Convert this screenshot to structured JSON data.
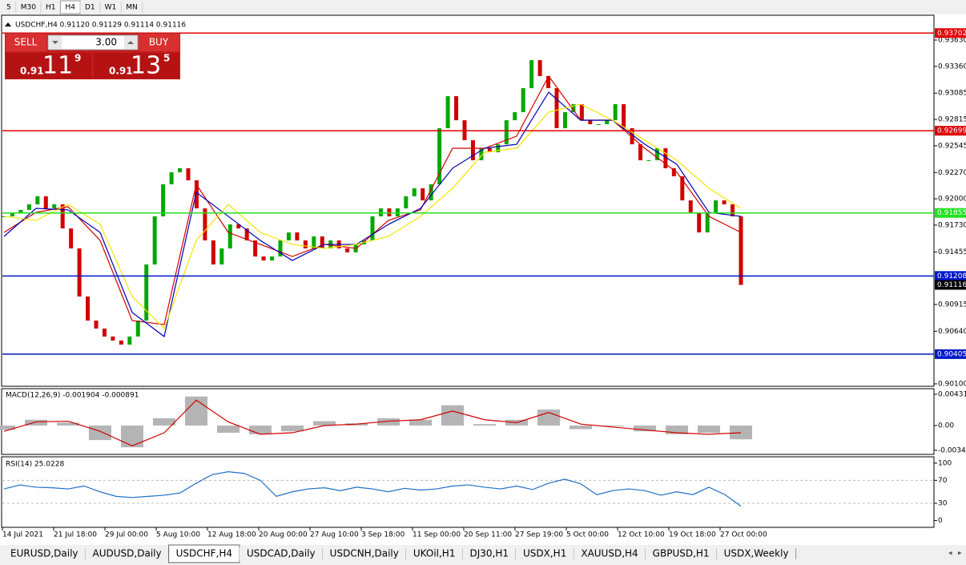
{
  "toolbar": {
    "timeframes": [
      "5",
      "M30",
      "H1",
      "H4",
      "D1",
      "W1",
      "MN"
    ],
    "active": 3
  },
  "trade_panel": {
    "sell": "SELL",
    "buy": "BUY",
    "lots": "3.00",
    "bid": {
      "big": "0.91",
      "pips": "11",
      "point": "9"
    },
    "ask": {
      "big": "0.91",
      "pips": "13",
      "point": "5"
    }
  },
  "chart_data": [
    {
      "type": "candlestick",
      "title": "USDCHF,H4 0.91120 0.91129 0.91114 0.91116",
      "closes": [
        0.9182,
        0.91861,
        0.91886,
        0.91943,
        0.92026,
        0.91902,
        0.91943,
        0.91696,
        0.91491,
        0.90997,
        0.9075,
        0.90668,
        0.90586,
        0.90545,
        0.90503,
        0.90586,
        0.9075,
        0.91326,
        0.9182,
        0.92149,
        0.92272,
        0.92314,
        0.9219,
        0.91902,
        0.91573,
        0.91326,
        0.91491,
        0.91738,
        0.91696,
        0.91573,
        0.91408,
        0.91367,
        0.91408,
        0.91573,
        0.91655,
        0.91573,
        0.91491,
        0.91614,
        0.91491,
        0.91573,
        0.91491,
        0.9145,
        0.91532,
        0.91573,
        0.9182,
        0.91902,
        0.9182,
        0.91902,
        0.92026,
        0.92108,
        0.91984,
        0.92149,
        0.92725,
        0.93054,
        0.92807,
        0.92602,
        0.92396,
        0.92519,
        0.92478,
        0.9256,
        0.92807,
        0.9289,
        0.93136,
        0.93424,
        0.9326,
        0.93136,
        0.92725,
        0.9289,
        0.92972,
        0.92807,
        0.92766,
        0.92766,
        0.92807,
        0.92972,
        0.92725,
        0.9256,
        0.92396,
        0.92396,
        0.92519,
        0.92314,
        0.92231,
        0.91984,
        0.91861,
        0.91655,
        0.91861,
        0.91984,
        0.91943,
        0.9182,
        0.91116
      ],
      "up_color": "#00a800",
      "down_color": "#d00000",
      "lines": [
        {
          "color": "#d40000",
          "values": [
            0.91655,
            0.91861,
            0.91919,
            0.91573,
            0.9075,
            0.90709,
            0.92149,
            0.91655,
            0.91532,
            0.91408,
            0.91532,
            0.91491,
            0.91779,
            0.91886,
            0.92519,
            0.92519,
            0.92643,
            0.9326,
            0.92807,
            0.92807,
            0.92519,
            0.92272,
            0.9182,
            0.91655
          ]
        },
        {
          "color": "#0000b4",
          "values": [
            0.91614,
            0.91902,
            0.91886,
            0.91655,
            0.90833,
            0.90586,
            0.92067,
            0.9182,
            0.91573,
            0.91367,
            0.91532,
            0.91532,
            0.91738,
            0.91902,
            0.92314,
            0.92519,
            0.9256,
            0.93095,
            0.92807,
            0.92807,
            0.9256,
            0.92355,
            0.91861,
            0.9182
          ]
        },
        {
          "color": "#f2e600",
          "values": [
            0.9182,
            0.91779,
            0.91943,
            0.91738,
            0.90997,
            0.90668,
            0.91573,
            0.91943,
            0.91655,
            0.91532,
            0.91491,
            0.91532,
            0.91614,
            0.9182,
            0.92108,
            0.92478,
            0.92519,
            0.9289,
            0.92972,
            0.92807,
            0.92602,
            0.92396,
            0.92108,
            0.91902
          ]
        }
      ],
      "levels": [
        {
          "value": 0.93702,
          "color": "#e00000"
        },
        {
          "value": 0.92699,
          "color": "#e00000"
        },
        {
          "value": 0.91855,
          "color": "#22e022"
        },
        {
          "value": 0.91208,
          "color": "#0018c8"
        },
        {
          "value": 0.90405,
          "color": "#0018c8"
        }
      ],
      "current_price": 0.91116,
      "ylim": [
        0.90075,
        0.93877
      ],
      "yticks": [
        {
          "value": 0.9363,
          "label": "0.93630"
        },
        {
          "value": 0.9336,
          "label": "0.93360"
        },
        0.93085,
        0.92815,
        0.92545,
        {
          "value": 0.9227,
          "label": "0.92270"
        },
        {
          "value": 0.92,
          "label": "0.92000"
        },
        {
          "value": 0.9173,
          "label": "0.91730"
        },
        0.91455,
        0.90915,
        {
          "value": 0.9064,
          "label": "0.90640"
        },
        {
          "value": 0.901,
          "label": "0.90100"
        }
      ]
    },
    {
      "type": "macd",
      "title": "MACD(12,26,9) -0.001904 -0.000891",
      "histogram": [
        -0.0006,
        0.0008,
        0.0004,
        -0.002,
        -0.003,
        0.001,
        0.004,
        -0.001,
        -0.0012,
        -0.0008,
        0.0006,
        0.0003,
        0.001,
        0.0008,
        0.0028,
        0.0002,
        0.0008,
        0.0022,
        -0.0005,
        -0.0001,
        -0.0008,
        -0.0012,
        -0.001,
        -0.0019
      ],
      "signal": [
        -0.0008,
        0.0005,
        0.0006,
        -0.0008,
        -0.0028,
        -0.001,
        0.0035,
        0.0005,
        -0.0012,
        -0.001,
        0,
        0.0002,
        0.0006,
        0.0008,
        0.002,
        0.0008,
        0.0004,
        0.0018,
        0.0002,
        -0.0002,
        -0.0006,
        -0.001,
        -0.0012,
        -0.001
      ],
      "histogram_color": "#b4b4b4",
      "signal_color": "#d00000",
      "ylim": [
        -0.00398,
        0.00497
      ],
      "yticks": [
        0.00431,
        {
          "value": 0,
          "label": "0.00"
        },
        {
          "value": -0.0034,
          "label": "-0.00340"
        }
      ]
    },
    {
      "type": "line",
      "title": "RSI(14) 25.0228",
      "values": [
        55,
        62,
        58,
        57,
        55,
        60,
        50,
        42,
        40,
        42,
        44,
        48,
        65,
        80,
        85,
        82,
        70,
        42,
        50,
        55,
        57,
        52,
        58,
        55,
        50,
        56,
        53,
        55,
        60,
        62,
        58,
        55,
        60,
        54,
        65,
        72,
        64,
        45,
        52,
        55,
        52,
        44,
        50,
        45,
        58,
        45,
        25.0228
      ],
      "color": "#1e6fc8",
      "levels": [
        70,
        30
      ],
      "ylim": [
        -12,
        111
      ],
      "yticks": [
        100,
        70,
        30,
        0
      ]
    }
  ],
  "time_axis": {
    "labels": [
      "14 Jul 2021",
      "21 Jul 18:00",
      "29 Jul 00:00",
      "5 Aug 10:00",
      "12 Aug 18:00",
      "20 Aug 00:00",
      "27 Aug 10:00",
      "3 Sep 18:00",
      "11 Sep 00:00",
      "20 Sep 11:00",
      "27 Sep 19:00",
      "5 Oct 00:00",
      "12 Oct 10:00",
      "19 Oct 18:00",
      "27 Oct 00:00"
    ]
  },
  "tabs": {
    "items": [
      "EURUSD,Daily",
      "AUDUSD,Daily",
      "USDCHF,H4",
      "USDCAD,Daily",
      "USDCNH,Daily",
      "UKOil,H1",
      "DJ30,H1",
      "USDX,H1",
      "XAUUSD,H4",
      "GBPUSD,H1",
      "USDX,Weekly"
    ],
    "active": 2
  }
}
